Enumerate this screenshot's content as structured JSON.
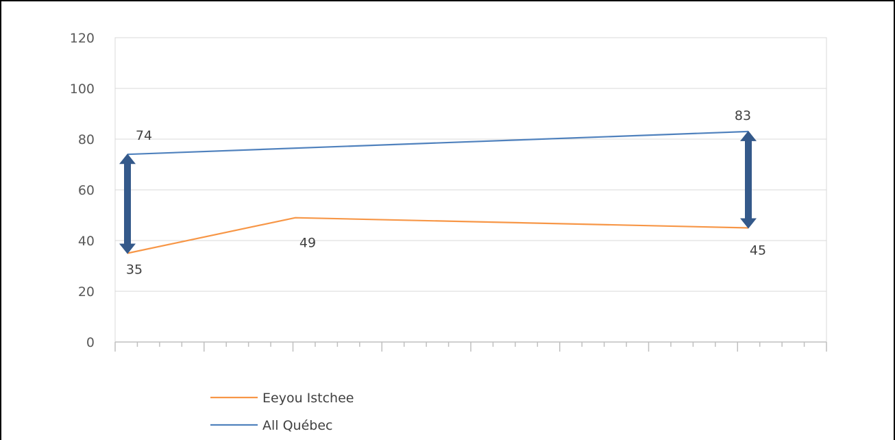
{
  "chart_data": {
    "type": "line",
    "title": "",
    "xlabel": "",
    "ylabel": "",
    "ylim": [
      0,
      120
    ],
    "yticks": [
      0,
      20,
      40,
      60,
      80,
      100,
      120
    ],
    "grid": true,
    "legend_position": "bottom-left",
    "x": [
      1,
      2,
      3,
      4,
      5,
      6,
      7,
      8
    ],
    "series": [
      {
        "name": "Eeyou Istchee",
        "color": "#F79646",
        "points": [
          {
            "x": 1,
            "y": 35
          },
          {
            "x": 3,
            "y": 49
          },
          {
            "x": 8,
            "y": 45
          }
        ],
        "labels": [
          "35",
          "49",
          "45"
        ]
      },
      {
        "name": "All Québec",
        "color": "#4F81BD",
        "points": [
          {
            "x": 1,
            "y": 74
          },
          {
            "x": 8,
            "y": 83
          }
        ],
        "labels": [
          "74",
          "83"
        ]
      }
    ],
    "annotations": [
      {
        "type": "double-arrow",
        "x": 1,
        "from": 35,
        "to": 74,
        "color": "#34598A"
      },
      {
        "type": "double-arrow",
        "x": 8,
        "from": 45,
        "to": 83,
        "color": "#34598A"
      }
    ]
  }
}
